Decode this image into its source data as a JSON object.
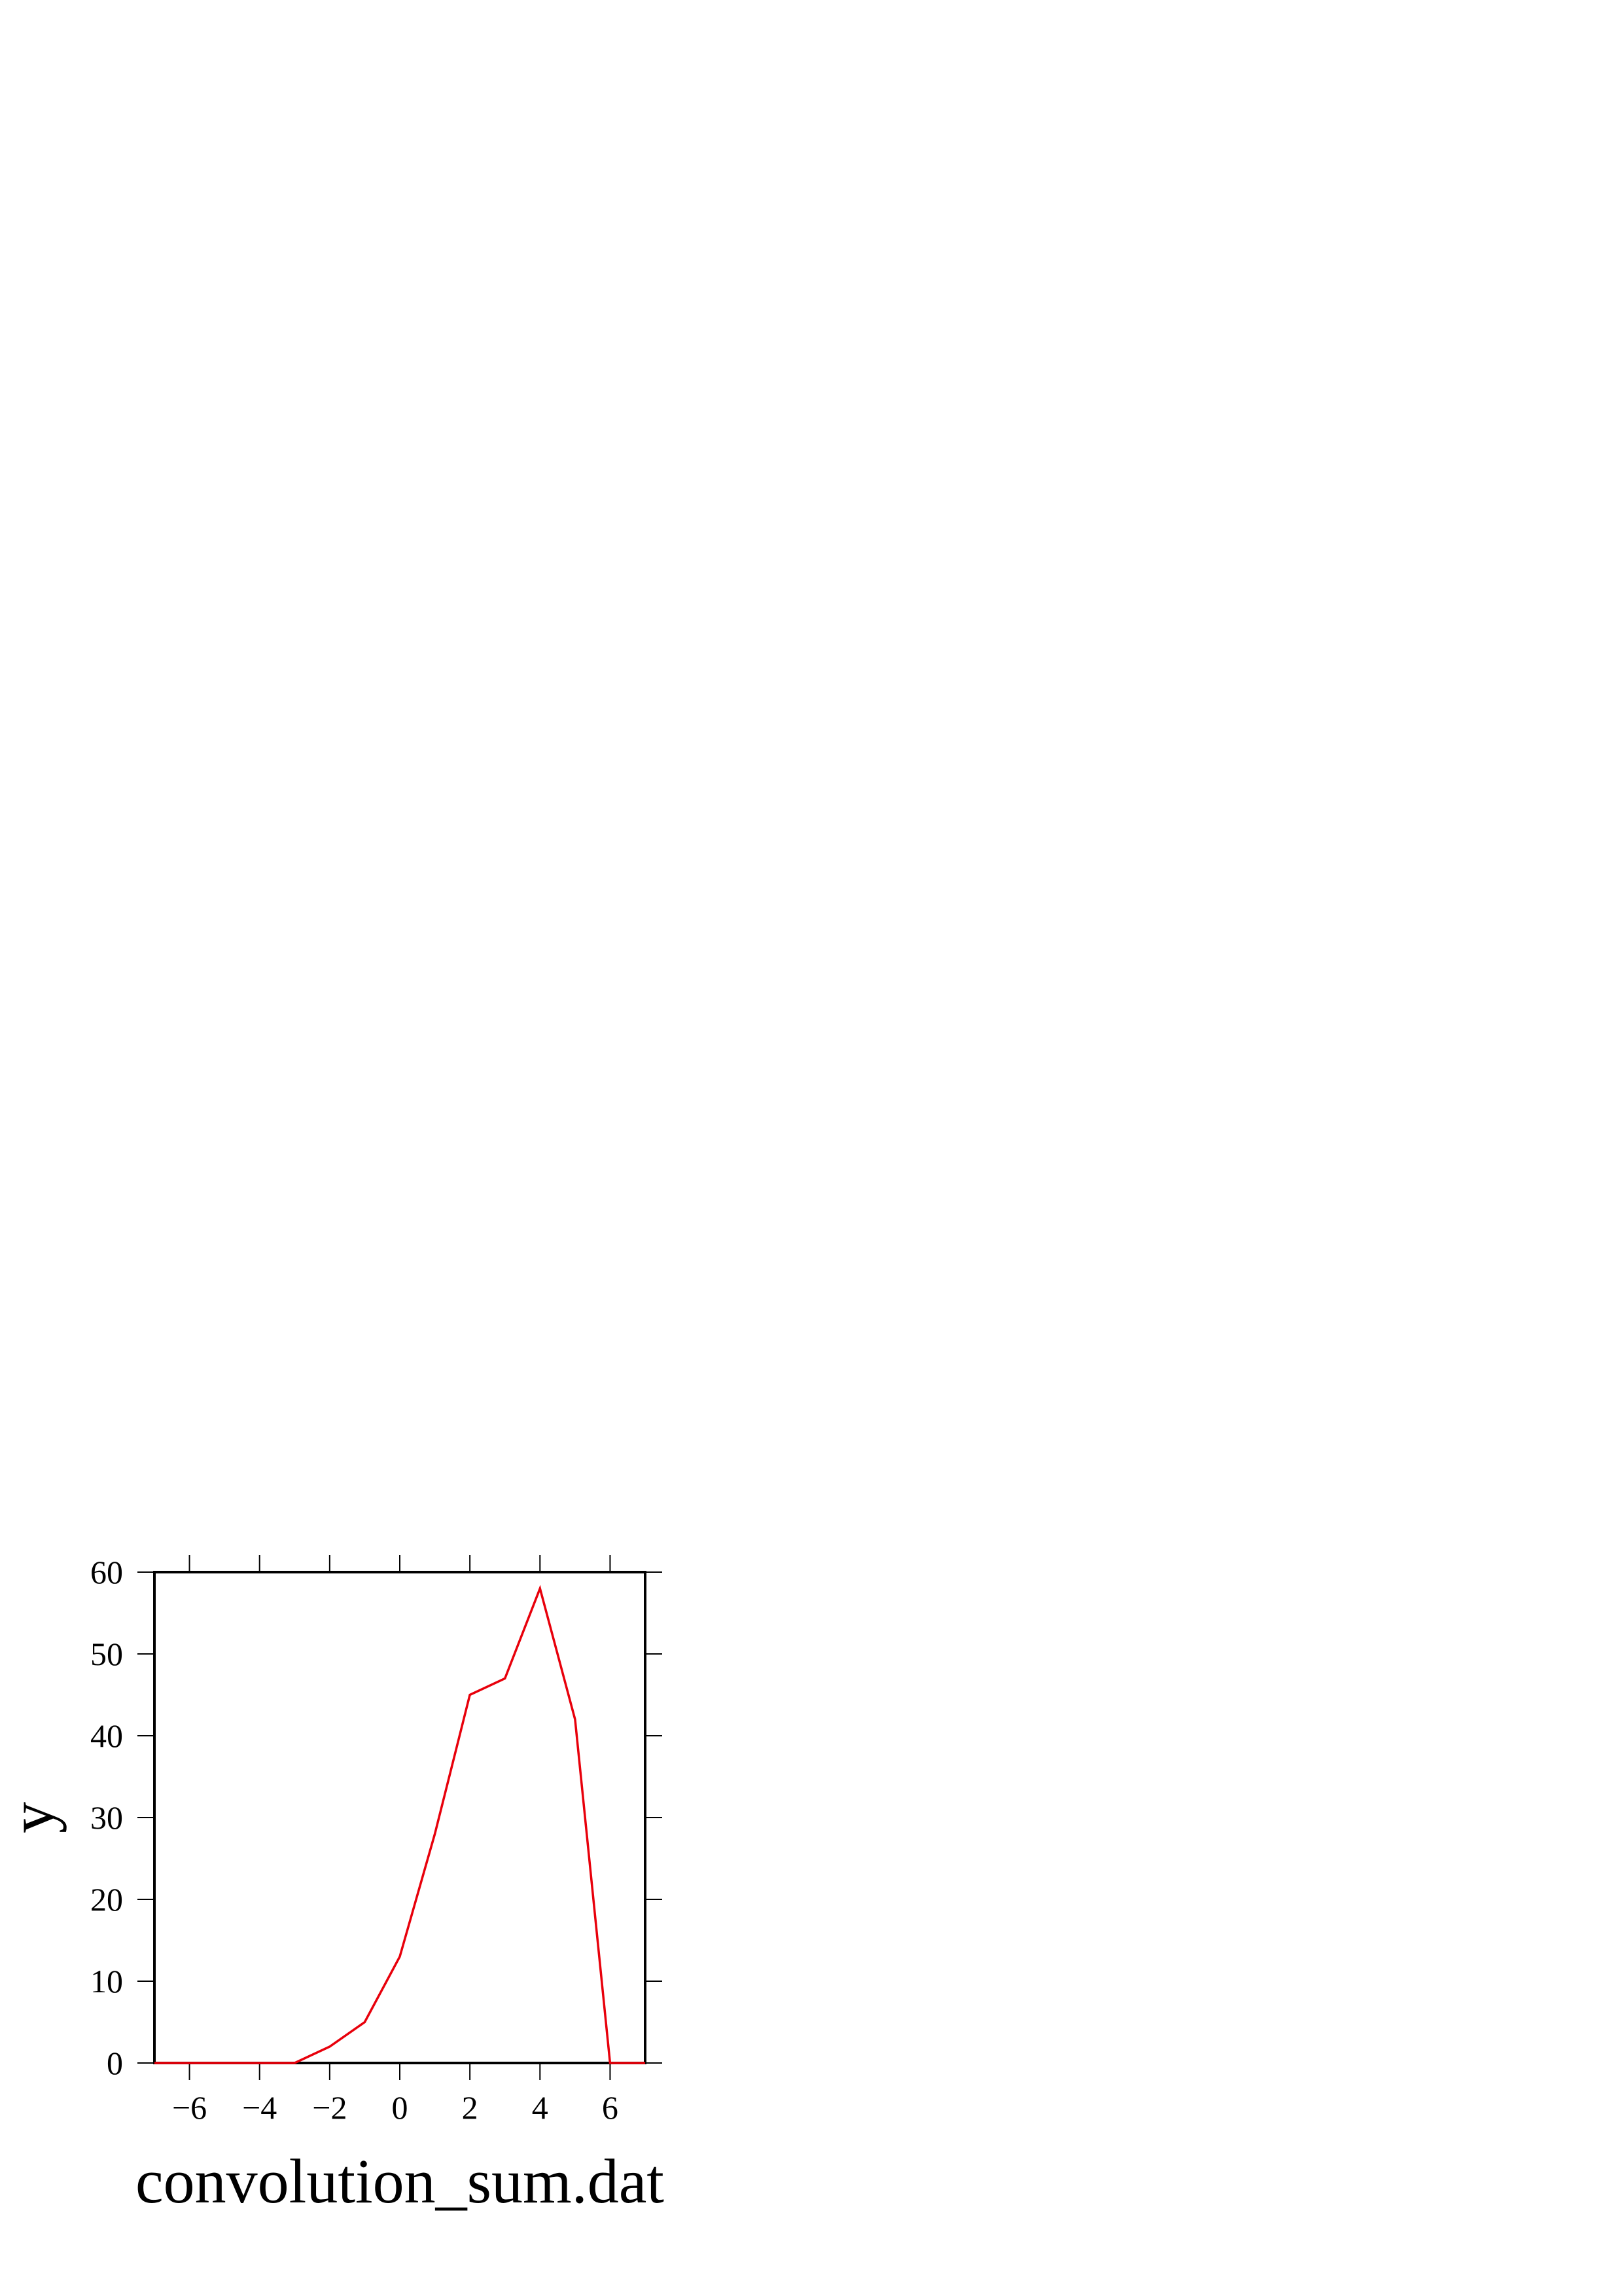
{
  "chart_data": {
    "type": "line",
    "title": "",
    "xlabel": "convolution_sum.dat",
    "ylabel": "y",
    "xlim": [
      -7,
      7
    ],
    "ylim": [
      0,
      60
    ],
    "x_ticks": [
      -6,
      -4,
      -2,
      0,
      2,
      4,
      6
    ],
    "x_tick_labels": [
      "−6",
      "−4",
      "−2",
      "0",
      "2",
      "4",
      "6"
    ],
    "y_ticks": [
      0,
      10,
      20,
      30,
      40,
      50,
      60
    ],
    "y_tick_labels": [
      "0",
      "10",
      "20",
      "30",
      "40",
      "50",
      "60"
    ],
    "grid": false,
    "legend": "none",
    "series": [
      {
        "color": "#e8000b",
        "x": [
          -7,
          -6,
          -5,
          -4,
          -3,
          -2,
          -1,
          0,
          1,
          2,
          3,
          4,
          5,
          6,
          7
        ],
        "y": [
          0,
          0,
          0,
          0,
          0,
          2,
          5,
          13,
          28,
          45,
          47,
          58,
          42,
          0,
          0
        ]
      }
    ]
  }
}
